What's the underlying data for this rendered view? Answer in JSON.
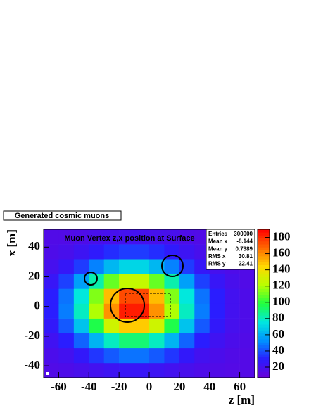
{
  "panel_label": "Generated cosmic muons",
  "chart_data": {
    "type": "heatmap",
    "title": "Muon Vertex z,x position at Surface",
    "x_label": "z [m]",
    "y_label": "x [m]",
    "xbins": [
      -70,
      -60,
      -50,
      -40,
      -30,
      -20,
      -10,
      0,
      10,
      20,
      30,
      40,
      50,
      60,
      70
    ],
    "ybins": [
      -48,
      -38,
      -28,
      -18,
      -8,
      2,
      12,
      22,
      32,
      42,
      52
    ],
    "values": [
      [
        16,
        17,
        19,
        21,
        23,
        25,
        25,
        23,
        21,
        19,
        17,
        16,
        15,
        15
      ],
      [
        18,
        21,
        27,
        35,
        42,
        47,
        47,
        42,
        35,
        27,
        21,
        18,
        16,
        15
      ],
      [
        22,
        30,
        44,
        62,
        80,
        91,
        91,
        80,
        62,
        44,
        30,
        22,
        18,
        16
      ],
      [
        27,
        42,
        66,
        97,
        128,
        147,
        147,
        128,
        97,
        66,
        42,
        27,
        20,
        17
      ],
      [
        30,
        49,
        80,
        120,
        159,
        184,
        184,
        159,
        120,
        80,
        49,
        30,
        21,
        17
      ],
      [
        30,
        47,
        76,
        113,
        150,
        174,
        174,
        150,
        113,
        76,
        47,
        30,
        21,
        17
      ],
      [
        25,
        37,
        57,
        83,
        109,
        125,
        125,
        109,
        83,
        57,
        37,
        25,
        19,
        16
      ],
      [
        20,
        26,
        36,
        50,
        63,
        71,
        71,
        63,
        50,
        36,
        26,
        20,
        17,
        16
      ],
      [
        17,
        19,
        23,
        28,
        33,
        36,
        36,
        33,
        28,
        23,
        19,
        17,
        16,
        15
      ],
      [
        16,
        16,
        17,
        19,
        20,
        21,
        21,
        20,
        19,
        17,
        16,
        16,
        15,
        15
      ]
    ],
    "xlim": [
      -70,
      70
    ],
    "ylim": [
      -48,
      52
    ],
    "zlim": [
      7,
      190
    ],
    "xticks": [
      -60,
      -40,
      -20,
      0,
      20,
      40,
      60
    ],
    "yticks": [
      -40,
      -20,
      0,
      20,
      40
    ],
    "zticks": [
      20,
      40,
      60,
      80,
      100,
      120,
      140,
      160,
      180
    ],
    "colorscale": [
      "#6a00d8",
      "#2a1cff",
      "#0090ff",
      "#00e8e0",
      "#20ff40",
      "#b8ff00",
      "#ffd800",
      "#ff6a00",
      "#ff0000"
    ],
    "stats": [
      {
        "label": "Entries",
        "value": 300000
      },
      {
        "label": "Mean x",
        "value": -8.144
      },
      {
        "label": "Mean y",
        "value": 0.7389
      },
      {
        "label": "RMS x",
        "value": 30.81
      },
      {
        "label": "RMS y",
        "value": 22.41
      }
    ]
  }
}
